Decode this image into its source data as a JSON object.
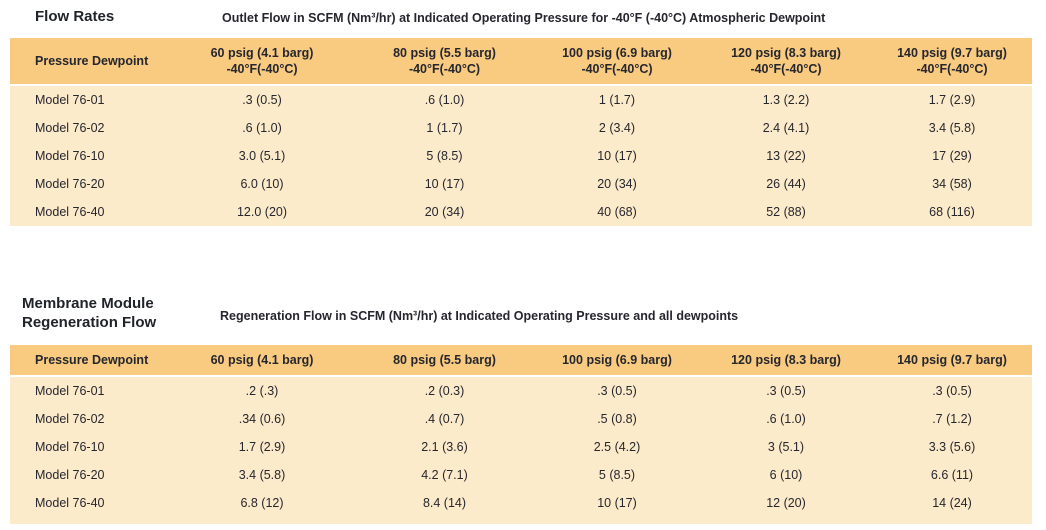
{
  "colors": {
    "header_band": "#f8cb81",
    "body_band": "#fcebca",
    "text": "#26262e",
    "page_background": "#ffffff"
  },
  "tables": [
    {
      "title": "Flow Rates",
      "subtitle": "Outlet Flow in SCFM (Nm³/hr) at Indicated Operating Pressure for -40°F (-40°C) Atmospheric Dewpoint",
      "row_header": "Pressure Dewpoint",
      "columns": [
        {
          "label": "60 psig (4.1 barg)",
          "sub": "-40°F(-40°C)"
        },
        {
          "label": "80 psig (5.5 barg)",
          "sub": "-40°F(-40°C)"
        },
        {
          "label": "100 psig (6.9 barg)",
          "sub": "-40°F(-40°C)"
        },
        {
          "label": "120 psig (8.3 barg)",
          "sub": "-40°F(-40°C)"
        },
        {
          "label": "140 psig (9.7 barg)",
          "sub": "-40°F(-40°C)"
        }
      ],
      "rows": [
        {
          "model": "Model 76-01",
          "values": [
            ".3 (0.5)",
            ".6 (1.0)",
            "1 (1.7)",
            "1.3 (2.2)",
            "1.7 (2.9)"
          ]
        },
        {
          "model": "Model 76-02",
          "values": [
            ".6 (1.0)",
            "1 (1.7)",
            "2 (3.4)",
            "2.4 (4.1)",
            "3.4 (5.8)"
          ]
        },
        {
          "model": "Model 76-10",
          "values": [
            "3.0 (5.1)",
            "5 (8.5)",
            "10 (17)",
            "13 (22)",
            "17 (29)"
          ]
        },
        {
          "model": "Model 76-20",
          "values": [
            "6.0 (10)",
            "10 (17)",
            "20 (34)",
            "26 (44)",
            "34 (58)"
          ]
        },
        {
          "model": "Model 76-40",
          "values": [
            "12.0 (20)",
            "20 (34)",
            "40 (68)",
            "52 (88)",
            "68 (116)"
          ]
        }
      ]
    },
    {
      "title_line1": "Membrane Module",
      "title_line2": "Regeneration Flow",
      "subtitle": "Regeneration Flow in SCFM (Nm³/hr) at Indicated Operating Pressure and all dewpoints",
      "row_header": "Pressure Dewpoint",
      "columns": [
        {
          "label": "60 psig (4.1 barg)"
        },
        {
          "label": "80 psig (5.5 barg)"
        },
        {
          "label": "100 psig (6.9 barg)"
        },
        {
          "label": "120 psig (8.3 barg)"
        },
        {
          "label": "140 psig (9.7 barg)"
        }
      ],
      "rows": [
        {
          "model": "Model 76-01",
          "values": [
            ".2 (.3)",
            ".2 (0.3)",
            ".3 (0.5)",
            ".3 (0.5)",
            ".3 (0.5)"
          ]
        },
        {
          "model": "Model 76-02",
          "values": [
            ".34 (0.6)",
            ".4 (0.7)",
            ".5 (0.8)",
            ".6 (1.0)",
            ".7 (1.2)"
          ]
        },
        {
          "model": "Model 76-10",
          "values": [
            "1.7 (2.9)",
            "2.1 (3.6)",
            "2.5 (4.2)",
            "3 (5.1)",
            "3.3 (5.6)"
          ]
        },
        {
          "model": "Model 76-20",
          "values": [
            "3.4 (5.8)",
            "4.2 (7.1)",
            "5 (8.5)",
            "6 (10)",
            "6.6 (11)"
          ]
        },
        {
          "model": "Model 76-40",
          "values": [
            "6.8 (12)",
            "8.4 (14)",
            "10 (17)",
            "12 (20)",
            "14 (24)"
          ]
        }
      ]
    }
  ]
}
